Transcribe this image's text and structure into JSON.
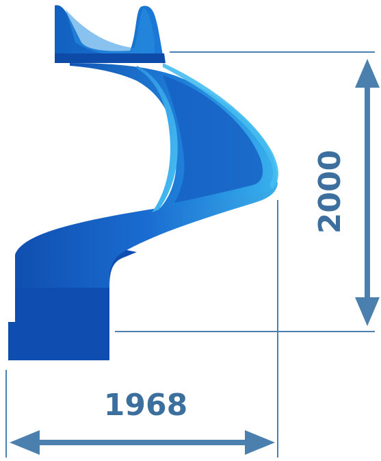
{
  "diagram": {
    "subject": "spiral-water-slide",
    "dimensions": {
      "height_label": "2000",
      "width_label": "1968"
    },
    "colors": {
      "dimension_lines": "#4a7fae",
      "label_text": "#3d6f9e",
      "slide_dark": "#0d4bb3",
      "slide_mid": "#1a6fd0",
      "slide_light": "#3ab0ee"
    }
  }
}
